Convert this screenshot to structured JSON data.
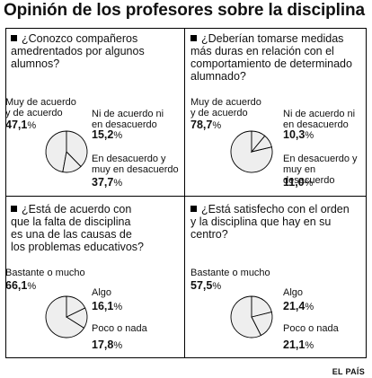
{
  "title": "Opinión de los profesores sobre la disciplina",
  "footer": "EL PAÍS",
  "chart_data": [
    {
      "type": "pie",
      "question": "¿Conozco compañeros amedrentados por algunos alumnos?",
      "slices": [
        {
          "label": "Muy de acuerdo y de acuerdo",
          "value": 47.1,
          "text": "47,1"
        },
        {
          "label": "Ni de acuerdo ni en desacuerdo",
          "value": 15.2,
          "text": "15,2"
        },
        {
          "label": "En desacuerdo y muy en desacuerdo",
          "value": 37.7,
          "text": "37,7"
        }
      ]
    },
    {
      "type": "pie",
      "question": "¿Deberían tomarse medidas más duras en relación con el comportamiento de determinado alumnado?",
      "slices": [
        {
          "label": "Muy de acuerdo y de acuerdo",
          "value": 78.7,
          "text": "78,7"
        },
        {
          "label": "Ni de acuerdo ni en desacuerdo",
          "value": 10.3,
          "text": "10,3"
        },
        {
          "label": "En desacuerdo y muy en desacuerdo",
          "value": 11.0,
          "text": "11,0"
        }
      ]
    },
    {
      "type": "pie",
      "question": "¿Está de acuerdo con que la falta de disciplina es una de las causas de los problemas educativos?",
      "slices": [
        {
          "label": "Bastante o mucho",
          "value": 66.1,
          "text": "66,1"
        },
        {
          "label": "Algo",
          "value": 16.1,
          "text": "16,1"
        },
        {
          "label": "Poco o nada",
          "value": 17.8,
          "text": "17,8"
        }
      ]
    },
    {
      "type": "pie",
      "question": "¿Está satisfecho con el orden y la disciplina que hay en su centro?",
      "slices": [
        {
          "label": "Bastante o mucho",
          "value": 57.5,
          "text": "57,5"
        },
        {
          "label": "Algo",
          "value": 21.4,
          "text": "21,4"
        },
        {
          "label": "Poco o nada",
          "value": 21.1,
          "text": "21,1"
        }
      ]
    }
  ],
  "percent_sign": "%",
  "colors": {
    "slice_fill": "#eeeeee",
    "stroke": "#000000"
  }
}
